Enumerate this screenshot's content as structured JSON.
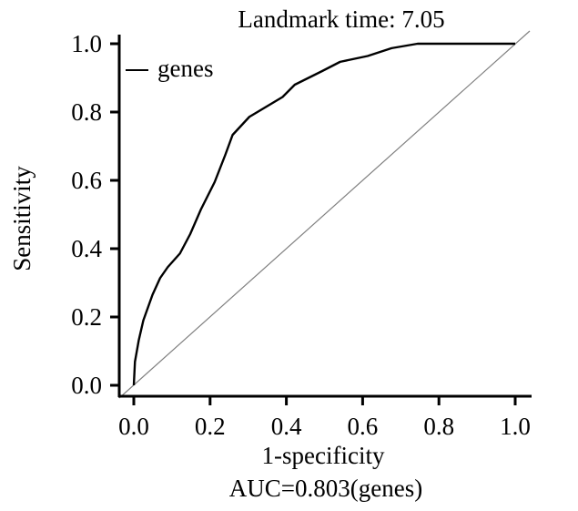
{
  "chart_data": {
    "type": "line",
    "title": "Landmark time: 7.05",
    "xlabel": "1-specificity",
    "ylabel": "Sensitivity",
    "caption": "AUC=0.803(genes)",
    "xlim": [
      0,
      1
    ],
    "ylim": [
      0,
      1
    ],
    "x_ticks": [
      "0.0",
      "0.2",
      "0.4",
      "0.6",
      "0.8",
      "1.0"
    ],
    "y_ticks": [
      "0.0",
      "0.2",
      "0.4",
      "0.6",
      "0.8",
      "1.0"
    ],
    "grid": false,
    "legend_position": "top-left",
    "series": [
      {
        "name": "genes",
        "color": "#000000",
        "x": [
          0,
          0.003,
          0.013,
          0.025,
          0.049,
          0.069,
          0.089,
          0.121,
          0.148,
          0.176,
          0.212,
          0.24,
          0.259,
          0.303,
          0.39,
          0.422,
          0.494,
          0.541,
          0.613,
          0.676,
          0.744,
          1.0
        ],
        "y": [
          0,
          0.069,
          0.132,
          0.19,
          0.265,
          0.314,
          0.346,
          0.386,
          0.443,
          0.515,
          0.595,
          0.675,
          0.733,
          0.786,
          0.844,
          0.88,
          0.92,
          0.947,
          0.964,
          0.987,
          1.0,
          1.0
        ]
      }
    ],
    "reference_line": {
      "x": [
        0,
        1
      ],
      "y": [
        0,
        1
      ],
      "color": "#808080"
    }
  }
}
